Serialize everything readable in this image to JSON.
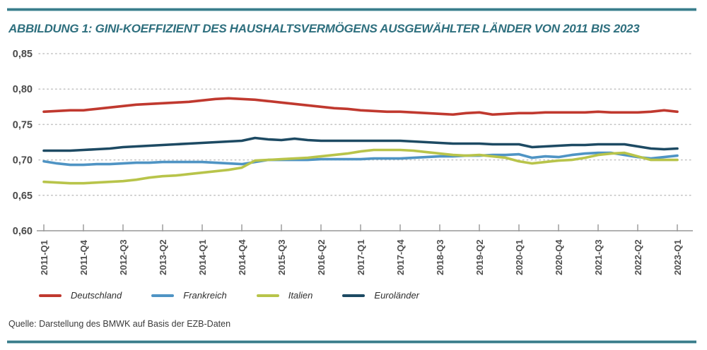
{
  "title": "ABBILDUNG 1: GINI-KOEFFIZIENT DES HAUSHALTSVERMÖGENS AUSGEWÄHLTER LÄNDER VON 2011 BIS 2023",
  "source": "Quelle: Darstellung des BMWK auf Basis der EZB-Daten",
  "colors": {
    "accent_rule": "#3a7d8b",
    "title": "#2e6f7e",
    "grid": "#c2c2c2",
    "axis": "#979797",
    "tick_label": "#4a4a4a",
    "deutschland": "#c0392f",
    "frankreich": "#4f94c4",
    "italien": "#b8c44a",
    "eurolaender": "#1d4a63"
  },
  "legend": [
    {
      "label": "Deutschland",
      "color": "#c0392f"
    },
    {
      "label": "Frankreich",
      "color": "#4f94c4"
    },
    {
      "label": "Italien",
      "color": "#b8c44a"
    },
    {
      "label": "Euroländer",
      "color": "#1d4a63"
    }
  ],
  "chart_data": {
    "type": "line",
    "title": "ABBILDUNG 1: GINI-KOEFFIZIENT DES HAUSHALTSVERMÖGENS AUSGEWÄHLTER LÄNDER VON 2011 BIS 2023",
    "xlabel": "",
    "ylabel": "",
    "ylim": [
      0.6,
      0.85
    ],
    "grid": "dotted horizontal gridlines",
    "legend_position": "bottom",
    "x_tick_step": 3,
    "x": [
      "2011-Q1",
      "2011-Q2",
      "2011-Q3",
      "2011-Q4",
      "2012-Q1",
      "2012-Q2",
      "2012-Q3",
      "2012-Q4",
      "2013-Q1",
      "2013-Q2",
      "2013-Q3",
      "2013-Q4",
      "2014-Q1",
      "2014-Q2",
      "2014-Q3",
      "2014-Q4",
      "2015-Q1",
      "2015-Q2",
      "2015-Q3",
      "2015-Q4",
      "2016-Q1",
      "2016-Q2",
      "2016-Q3",
      "2016-Q4",
      "2017-Q1",
      "2017-Q2",
      "2017-Q3",
      "2017-Q4",
      "2018-Q1",
      "2018-Q2",
      "2018-Q3",
      "2018-Q4",
      "2019-Q1",
      "2019-Q2",
      "2019-Q3",
      "2019-Q4",
      "2020-Q1",
      "2020-Q2",
      "2020-Q3",
      "2020-Q4",
      "2021-Q1",
      "2021-Q2",
      "2021-Q3",
      "2021-Q4",
      "2022-Q1",
      "2022-Q2",
      "2022-Q3",
      "2022-Q4",
      "2023-Q1"
    ],
    "x_tick_labels": [
      "2011-Q1",
      "2011-Q4",
      "2012-Q3",
      "2013-Q2",
      "2014-Q1",
      "2014-Q4",
      "2015-Q3",
      "2016-Q2",
      "2017-Q1",
      "2017-Q4",
      "2018-Q3",
      "2019-Q2",
      "2020-Q1",
      "2020-Q4",
      "2021-Q3",
      "2022-Q2",
      "2023-Q1"
    ],
    "yticks": [
      {
        "value": 0.85,
        "label": "0,85"
      },
      {
        "value": 0.8,
        "label": "0,80"
      },
      {
        "value": 0.75,
        "label": "0,75"
      },
      {
        "value": 0.7,
        "label": "0,70"
      },
      {
        "value": 0.65,
        "label": "0,65"
      },
      {
        "value": 0.6,
        "label": "0,60"
      }
    ],
    "series": [
      {
        "name": "Deutschland",
        "color": "#c0392f",
        "values": [
          0.768,
          0.769,
          0.77,
          0.77,
          0.772,
          0.774,
          0.776,
          0.778,
          0.779,
          0.78,
          0.781,
          0.782,
          0.784,
          0.786,
          0.787,
          0.786,
          0.785,
          0.783,
          0.781,
          0.779,
          0.777,
          0.775,
          0.773,
          0.772,
          0.77,
          0.769,
          0.768,
          0.768,
          0.767,
          0.766,
          0.765,
          0.764,
          0.766,
          0.767,
          0.764,
          0.765,
          0.766,
          0.766,
          0.767,
          0.767,
          0.767,
          0.767,
          0.768,
          0.767,
          0.767,
          0.767,
          0.768,
          0.77,
          0.768
        ]
      },
      {
        "name": "Frankreich",
        "color": "#4f94c4",
        "values": [
          0.698,
          0.695,
          0.693,
          0.693,
          0.694,
          0.694,
          0.695,
          0.696,
          0.696,
          0.697,
          0.697,
          0.697,
          0.697,
          0.696,
          0.695,
          0.694,
          0.697,
          0.7,
          0.7,
          0.7,
          0.7,
          0.701,
          0.701,
          0.701,
          0.701,
          0.702,
          0.702,
          0.702,
          0.703,
          0.704,
          0.705,
          0.705,
          0.706,
          0.706,
          0.707,
          0.707,
          0.708,
          0.703,
          0.705,
          0.704,
          0.707,
          0.709,
          0.71,
          0.71,
          0.707,
          0.704,
          0.702,
          0.704,
          0.706
        ]
      },
      {
        "name": "Italien",
        "color": "#b8c44a",
        "values": [
          0.669,
          0.668,
          0.667,
          0.667,
          0.668,
          0.669,
          0.67,
          0.672,
          0.675,
          0.677,
          0.678,
          0.68,
          0.682,
          0.684,
          0.686,
          0.689,
          0.699,
          0.7,
          0.701,
          0.702,
          0.703,
          0.705,
          0.707,
          0.709,
          0.712,
          0.714,
          0.714,
          0.714,
          0.713,
          0.711,
          0.709,
          0.707,
          0.706,
          0.707,
          0.705,
          0.703,
          0.698,
          0.695,
          0.697,
          0.699,
          0.7,
          0.703,
          0.707,
          0.709,
          0.71,
          0.705,
          0.7,
          0.7,
          0.7
        ]
      },
      {
        "name": "Euroländer",
        "color": "#1d4a63",
        "values": [
          0.713,
          0.713,
          0.713,
          0.714,
          0.715,
          0.716,
          0.718,
          0.719,
          0.72,
          0.721,
          0.722,
          0.723,
          0.724,
          0.725,
          0.726,
          0.727,
          0.731,
          0.729,
          0.728,
          0.73,
          0.728,
          0.727,
          0.727,
          0.727,
          0.727,
          0.727,
          0.727,
          0.727,
          0.726,
          0.725,
          0.724,
          0.723,
          0.723,
          0.723,
          0.722,
          0.722,
          0.722,
          0.718,
          0.719,
          0.72,
          0.721,
          0.721,
          0.722,
          0.722,
          0.722,
          0.719,
          0.716,
          0.715,
          0.716
        ]
      }
    ]
  }
}
